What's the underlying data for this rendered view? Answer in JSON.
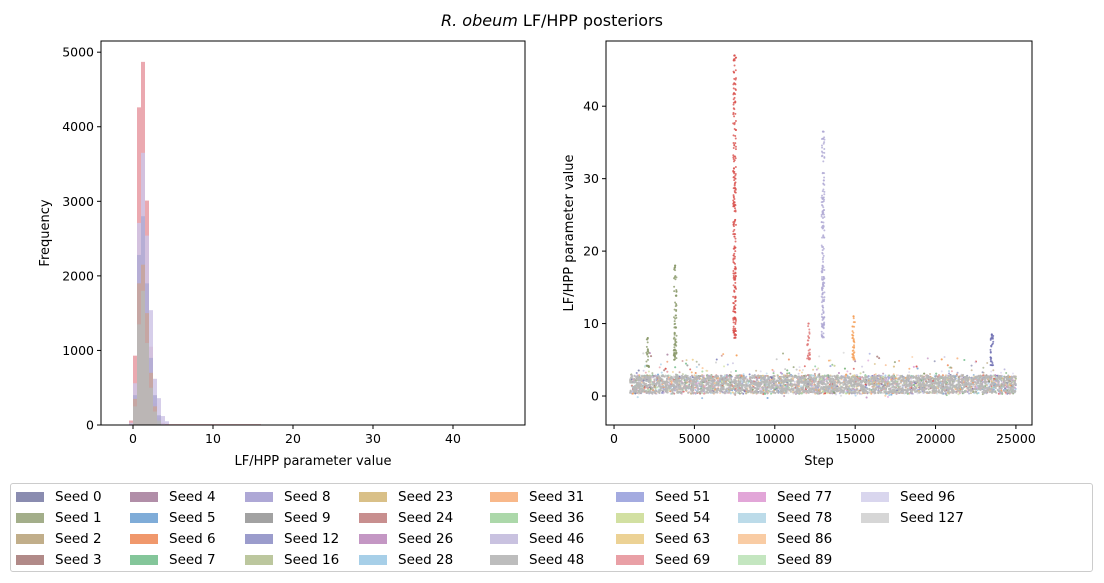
{
  "figure": {
    "title_italic": "R. obeum",
    "title_rest": " LF/HPP posteriors"
  },
  "chart_data": [
    {
      "type": "histogram",
      "xlabel": "LF/HPP parameter value",
      "ylabel": "Frequency",
      "xlim": [
        -4,
        49
      ],
      "ylim": [
        0,
        5150
      ],
      "xticks": [
        0,
        10,
        20,
        30,
        40
      ],
      "yticks": [
        0,
        1000,
        2000,
        3000,
        4000,
        5000
      ],
      "series": [
        {
          "color": "#e79aa2",
          "bins": [
            [
              -0.5,
              0,
              60
            ],
            [
              0,
              0.5,
              930
            ],
            [
              0.5,
              1,
              4260
            ],
            [
              1,
              1.5,
              4870
            ],
            [
              1.5,
              2,
              3010
            ],
            [
              2,
              2.5,
              1050
            ],
            [
              2.5,
              3,
              290
            ],
            [
              3,
              3.5,
              90
            ],
            [
              3.5,
              4,
              30
            ]
          ]
        },
        {
          "color": "#cfc6e6",
          "bins": [
            [
              -0.5,
              0,
              30
            ],
            [
              0,
              0.5,
              560
            ],
            [
              0.5,
              1,
              2710
            ],
            [
              1,
              1.5,
              3650
            ],
            [
              1.5,
              2,
              2540
            ],
            [
              2,
              2.5,
              1540
            ],
            [
              2.5,
              3,
              620
            ],
            [
              3,
              3.5,
              360
            ],
            [
              3.5,
              4,
              120
            ],
            [
              4,
              4.5,
              50
            ]
          ]
        },
        {
          "color": "#b0aad4",
          "bins": [
            [
              0,
              0.5,
              400
            ],
            [
              0.5,
              1,
              2280
            ],
            [
              1,
              1.5,
              2800
            ],
            [
              1.5,
              2,
              1900
            ],
            [
              2,
              2.5,
              900
            ],
            [
              2.5,
              3,
              400
            ],
            [
              3,
              3.5,
              130
            ]
          ]
        },
        {
          "color": "#c9a59a",
          "bins": [
            [
              0,
              0.5,
              350
            ],
            [
              0.5,
              1,
              1900
            ],
            [
              1,
              1.5,
              2150
            ],
            [
              1.5,
              2,
              1500
            ],
            [
              2,
              2.5,
              700
            ],
            [
              2.5,
              3,
              250
            ]
          ]
        },
        {
          "color": "#b8b8b8",
          "bins": [
            [
              0,
              0.5,
              250
            ],
            [
              0.5,
              1,
              1350
            ],
            [
              1,
              1.5,
              1800
            ],
            [
              1.5,
              2,
              1100
            ],
            [
              2,
              2.5,
              500
            ],
            [
              2.5,
              3,
              180
            ],
            [
              3,
              3.5,
              60
            ]
          ]
        }
      ]
    },
    {
      "type": "scatter",
      "xlabel": "Step",
      "ylabel": "LF/HPP parameter value",
      "xlim": [
        -500,
        26000
      ],
      "ylim": [
        -4,
        49
      ],
      "xticks": [
        0,
        5000,
        10000,
        15000,
        20000,
        25000
      ],
      "yticks": [
        0,
        10,
        20,
        30,
        40
      ],
      "step_range": [
        1000,
        25000
      ],
      "spikes": [
        {
          "step": 7500,
          "min": 8,
          "max": 47,
          "color": "#d9534f"
        },
        {
          "step": 13000,
          "min": 8,
          "max": 36.5,
          "color": "#b0aad4"
        },
        {
          "step": 3800,
          "min": 5,
          "max": 18,
          "color": "#8b9a6b"
        },
        {
          "step": 12100,
          "min": 5,
          "max": 10,
          "color": "#e07b7b"
        },
        {
          "step": 14900,
          "min": 5,
          "max": 11,
          "color": "#f5a05a"
        },
        {
          "step": 23500,
          "min": 4,
          "max": 8.5,
          "color": "#6b6bb0"
        },
        {
          "step": 2100,
          "min": 4,
          "max": 8,
          "color": "#8b9a6b"
        }
      ]
    }
  ],
  "legend": [
    {
      "label": "Seed 0",
      "color": "#8a8cb0"
    },
    {
      "label": "Seed 1",
      "color": "#a3ae8a"
    },
    {
      "label": "Seed 2",
      "color": "#c1ae8a"
    },
    {
      "label": "Seed 3",
      "color": "#b18a88"
    },
    {
      "label": "Seed 4",
      "color": "#b18ea8"
    },
    {
      "label": "Seed 5",
      "color": "#7facd8"
    },
    {
      "label": "Seed 6",
      "color": "#f0986c"
    },
    {
      "label": "Seed 7",
      "color": "#84c69a"
    },
    {
      "label": "Seed 8",
      "color": "#aea8d6"
    },
    {
      "label": "Seed 9",
      "color": "#a2a2a2"
    },
    {
      "label": "Seed 12",
      "color": "#9b9ccc"
    },
    {
      "label": "Seed 16",
      "color": "#bcc79e"
    },
    {
      "label": "Seed 23",
      "color": "#d9c088"
    },
    {
      "label": "Seed 24",
      "color": "#c88f8f"
    },
    {
      "label": "Seed 26",
      "color": "#c497c4"
    },
    {
      "label": "Seed 28",
      "color": "#a7cfe8"
    },
    {
      "label": "Seed 31",
      "color": "#f8b88a"
    },
    {
      "label": "Seed 36",
      "color": "#acd8aa"
    },
    {
      "label": "Seed 46",
      "color": "#c9c2e0"
    },
    {
      "label": "Seed 48",
      "color": "#bdbdbd"
    },
    {
      "label": "Seed 51",
      "color": "#a4abe0"
    },
    {
      "label": "Seed 54",
      "color": "#d2e0a2"
    },
    {
      "label": "Seed 63",
      "color": "#ecd295"
    },
    {
      "label": "Seed 69",
      "color": "#e9a0a6"
    },
    {
      "label": "Seed 77",
      "color": "#e2a6d8"
    },
    {
      "label": "Seed 78",
      "color": "#bcdbe9"
    },
    {
      "label": "Seed 86",
      "color": "#f9cca4"
    },
    {
      "label": "Seed 89",
      "color": "#c4e6c0"
    },
    {
      "label": "Seed 96",
      "color": "#d9d6ee"
    },
    {
      "label": "Seed 127",
      "color": "#d6d6d6"
    }
  ]
}
